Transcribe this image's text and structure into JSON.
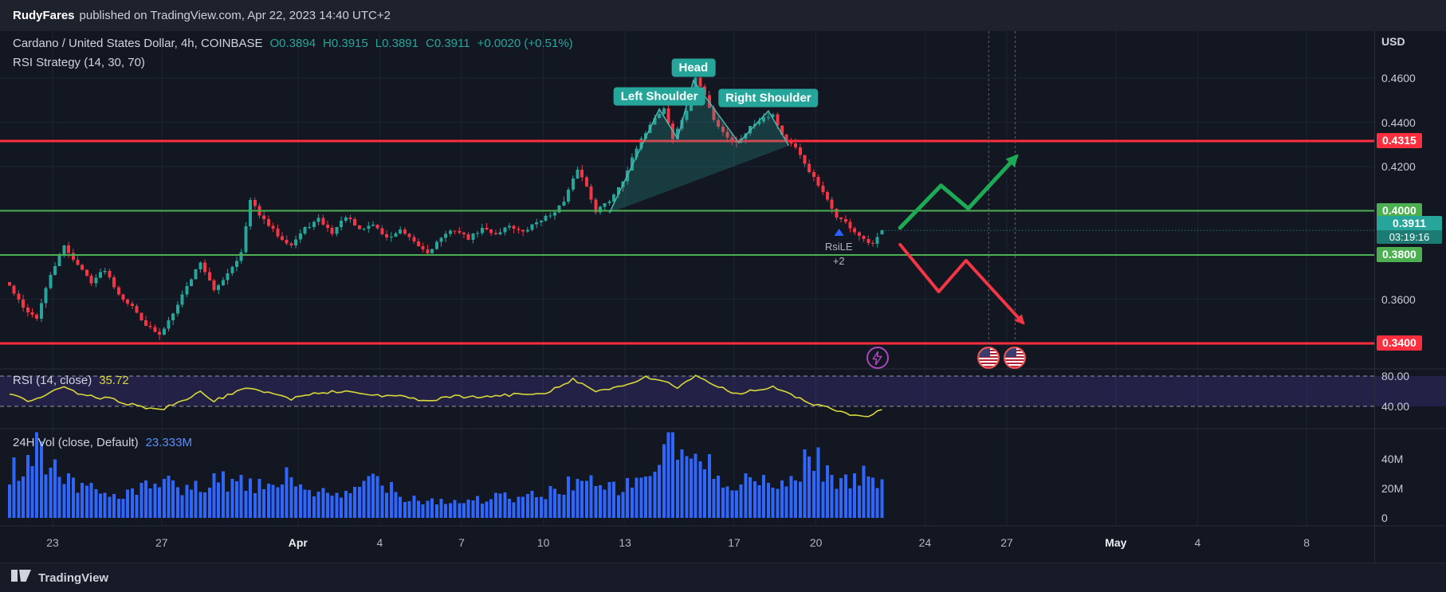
{
  "colors": {
    "up": "#26a69a",
    "down": "#f23645",
    "resistance_line": "#fd2e3d",
    "support_line": "#4caf50",
    "volume_bar": "#2e66fe",
    "rsi_line": "#d6d839",
    "rsi_band_fill": "rgba(126,87,255,0.16)",
    "pattern_fill": "rgba(38,166,154,0.25)",
    "pattern_stroke": "#4db6ac",
    "pattern_badge_bg": "#26a69a",
    "bull_arrow": "#1eaa55",
    "bear_arrow": "#f23645",
    "signal_arrow": "#2962ff",
    "last_badge_bg": "#26a69a",
    "grid": "#1c2334",
    "divider": "#2a2e39"
  },
  "attribution": {
    "author": "RudyFares",
    "rest": "published on TradingView.com, Apr 22, 2023 14:40 UTC+2"
  },
  "legend": {
    "symbol_title": "Cardano / United States Dollar, 4h, COINBASE",
    "open": "O0.3894",
    "high": "H0.3915",
    "low": "L0.3891",
    "close": "C0.3911",
    "change": "+0.0020 (+0.51%)",
    "strategy": "RSI Strategy (14, 30, 70)"
  },
  "rsi_pane": {
    "title": "RSI (14, close)",
    "value": "35.72",
    "axis": [
      {
        "text": "80.00",
        "v": 80
      },
      {
        "text": "40.00",
        "v": 40
      }
    ]
  },
  "volume_pane": {
    "title": "24H Vol (close, Default)",
    "value": "23.333M",
    "axis": [
      {
        "text": "40M",
        "v": 40
      },
      {
        "text": "20M",
        "v": 20
      },
      {
        "text": "0",
        "v": 0
      }
    ]
  },
  "price_axis": {
    "currency": "USD",
    "plain": [
      {
        "text": "0.4600",
        "price": 0.46
      },
      {
        "text": "0.4400",
        "price": 0.44
      },
      {
        "text": "0.4200",
        "price": 0.42
      },
      {
        "text": "0.3600",
        "price": 0.36
      }
    ],
    "levels": [
      {
        "text": "0.4315",
        "price": 0.4315,
        "type": "resistance"
      },
      {
        "text": "0.4000",
        "price": 0.4,
        "type": "support"
      },
      {
        "text": "0.3800",
        "price": 0.38,
        "type": "support"
      },
      {
        "text": "0.3400",
        "price": 0.34,
        "type": "resistance"
      }
    ],
    "last": {
      "text": "0.3911",
      "price": 0.3911,
      "countdown": "03:19:16"
    }
  },
  "time_axis": [
    {
      "label": "23",
      "day": 0,
      "major": false
    },
    {
      "label": "27",
      "day": 4,
      "major": false
    },
    {
      "label": "Apr",
      "day": 9,
      "major": true
    },
    {
      "label": "4",
      "day": 12,
      "major": false
    },
    {
      "label": "7",
      "day": 15,
      "major": false
    },
    {
      "label": "10",
      "day": 18,
      "major": false
    },
    {
      "label": "13",
      "day": 21,
      "major": false
    },
    {
      "label": "17",
      "day": 25,
      "major": false
    },
    {
      "label": "20",
      "day": 28,
      "major": false
    },
    {
      "label": "24",
      "day": 32,
      "major": false
    },
    {
      "label": "27",
      "day": 35,
      "major": false
    },
    {
      "label": "May",
      "day": 39,
      "major": true
    },
    {
      "label": "4",
      "day": 42,
      "major": false
    },
    {
      "label": "8",
      "day": 46,
      "major": false
    }
  ],
  "annotations": {
    "pattern_labels": {
      "left": "Left Shoulder",
      "head": "Head",
      "right": "Right Shoulder"
    },
    "signal": {
      "line1": "RsiLE",
      "line2": "+2"
    }
  },
  "footer": {
    "brand": "TradingView"
  },
  "chart_data": {
    "type": "candlestick",
    "symbol": "ADA/USD",
    "timeframe": "4h",
    "exchange": "COINBASE",
    "bars": 193,
    "visible_price_range": [
      0.3285,
      0.4813
    ],
    "levels": {
      "resistance": [
        0.4315,
        0.34
      ],
      "support": [
        0.4,
        0.38
      ]
    },
    "last_candle": {
      "o": 0.3894,
      "h": 0.3915,
      "l": 0.3891,
      "c": 0.3911
    },
    "extremes": {
      "swing_high": 0.4625,
      "swing_low": 0.3415
    },
    "rsi_band": [
      40,
      80
    ],
    "noise_seed": 42,
    "signal_bar": 182.5,
    "signal_price": 0.392,
    "strategy_event_bar": 191,
    "event_line_bars": [
      215.5,
      221.3
    ],
    "close_waypoints": [
      [
        0,
        0.366
      ],
      [
        3,
        0.356
      ],
      [
        6,
        0.3515
      ],
      [
        9,
        0.371
      ],
      [
        12,
        0.384
      ],
      [
        15,
        0.3755
      ],
      [
        18,
        0.368
      ],
      [
        21,
        0.3735
      ],
      [
        24,
        0.3625
      ],
      [
        27,
        0.3565
      ],
      [
        30,
        0.3485
      ],
      [
        33,
        0.3435
      ],
      [
        35,
        0.3505
      ],
      [
        38,
        0.362
      ],
      [
        42,
        0.377
      ],
      [
        45,
        0.3635
      ],
      [
        48,
        0.372
      ],
      [
        51,
        0.381
      ],
      [
        53,
        0.4045
      ],
      [
        56,
        0.3955
      ],
      [
        59,
        0.389
      ],
      [
        62,
        0.3845
      ],
      [
        65,
        0.392
      ],
      [
        68,
        0.396
      ],
      [
        71,
        0.39
      ],
      [
        74,
        0.3975
      ],
      [
        77,
        0.391
      ],
      [
        80,
        0.394
      ],
      [
        83,
        0.3875
      ],
      [
        86,
        0.391
      ],
      [
        89,
        0.3855
      ],
      [
        92,
        0.381
      ],
      [
        95,
        0.388
      ],
      [
        98,
        0.3915
      ],
      [
        101,
        0.3875
      ],
      [
        104,
        0.392
      ],
      [
        107,
        0.3895
      ],
      [
        110,
        0.3935
      ],
      [
        113,
        0.39
      ],
      [
        116,
        0.395
      ],
      [
        119,
        0.398
      ],
      [
        122,
        0.404
      ],
      [
        125,
        0.419
      ],
      [
        127,
        0.411
      ],
      [
        129,
        0.4
      ],
      [
        132,
        0.4045
      ],
      [
        135,
        0.414
      ],
      [
        138,
        0.428
      ],
      [
        141,
        0.4395
      ],
      [
        144,
        0.4465
      ],
      [
        146,
        0.4325
      ],
      [
        149,
        0.4455
      ],
      [
        151,
        0.4605
      ],
      [
        153,
        0.452
      ],
      [
        155,
        0.441
      ],
      [
        158,
        0.4335
      ],
      [
        160,
        0.4305
      ],
      [
        163,
        0.438
      ],
      [
        166,
        0.4425
      ],
      [
        168,
        0.4435
      ],
      [
        170,
        0.4345
      ],
      [
        173,
        0.428
      ],
      [
        176,
        0.418
      ],
      [
        179,
        0.408
      ],
      [
        182,
        0.3975
      ],
      [
        184,
        0.3945
      ],
      [
        186,
        0.3905
      ],
      [
        188,
        0.3865
      ],
      [
        190,
        0.3845
      ],
      [
        191,
        0.3875
      ],
      [
        192,
        0.3911
      ]
    ],
    "volume_waypoints_m": [
      [
        0,
        30
      ],
      [
        4,
        42
      ],
      [
        6,
        54
      ],
      [
        9,
        36
      ],
      [
        12,
        28
      ],
      [
        16,
        22
      ],
      [
        22,
        15
      ],
      [
        28,
        18
      ],
      [
        34,
        24
      ],
      [
        38,
        17
      ],
      [
        44,
        23
      ],
      [
        48,
        25
      ],
      [
        54,
        20
      ],
      [
        61,
        27
      ],
      [
        67,
        18
      ],
      [
        73,
        13
      ],
      [
        78,
        24
      ],
      [
        81,
        30
      ],
      [
        86,
        16
      ],
      [
        92,
        12
      ],
      [
        100,
        11
      ],
      [
        106,
        14
      ],
      [
        112,
        13
      ],
      [
        118,
        16
      ],
      [
        125,
        26
      ],
      [
        131,
        19
      ],
      [
        137,
        22
      ],
      [
        142,
        34
      ],
      [
        145,
        52
      ],
      [
        148,
        44
      ],
      [
        150,
        40
      ],
      [
        156,
        30
      ],
      [
        160,
        24
      ],
      [
        163,
        27
      ],
      [
        167,
        21
      ],
      [
        170,
        22
      ],
      [
        174,
        32
      ],
      [
        176,
        45
      ],
      [
        179,
        34
      ],
      [
        181,
        28
      ],
      [
        184,
        24
      ],
      [
        186,
        25
      ],
      [
        189,
        29
      ],
      [
        192,
        28
      ]
    ],
    "rsi_waypoints": [
      [
        0,
        58
      ],
      [
        5,
        46
      ],
      [
        9,
        60
      ],
      [
        12,
        64
      ],
      [
        16,
        55
      ],
      [
        22,
        50
      ],
      [
        27,
        42
      ],
      [
        33,
        35
      ],
      [
        38,
        48
      ],
      [
        42,
        58
      ],
      [
        45,
        48
      ],
      [
        53,
        65
      ],
      [
        59,
        55
      ],
      [
        62,
        50
      ],
      [
        68,
        58
      ],
      [
        74,
        60
      ],
      [
        80,
        55
      ],
      [
        86,
        53
      ],
      [
        92,
        47
      ],
      [
        98,
        53
      ],
      [
        104,
        52
      ],
      [
        110,
        55
      ],
      [
        118,
        58
      ],
      [
        124,
        76
      ],
      [
        129,
        60
      ],
      [
        135,
        66
      ],
      [
        140,
        78
      ],
      [
        144,
        74
      ],
      [
        147,
        65
      ],
      [
        151,
        79
      ],
      [
        155,
        68
      ],
      [
        160,
        57
      ],
      [
        164,
        62
      ],
      [
        168,
        65
      ],
      [
        172,
        55
      ],
      [
        176,
        45
      ],
      [
        180,
        38
      ],
      [
        183,
        33
      ],
      [
        186,
        27
      ],
      [
        189,
        26
      ],
      [
        192,
        35.72
      ]
    ],
    "head_shoulders_points": [
      [
        132,
        0.399
      ],
      [
        143,
        0.446
      ],
      [
        147,
        0.4326
      ],
      [
        150.5,
        0.4589
      ],
      [
        160.5,
        0.4308
      ],
      [
        167,
        0.4452
      ],
      [
        171.5,
        0.4294
      ]
    ],
    "projection_bull": [
      [
        196,
        0.3923
      ],
      [
        205,
        0.4114
      ],
      [
        211,
        0.401
      ],
      [
        221.5,
        0.4244
      ]
    ],
    "projection_bear": [
      [
        196,
        0.3847
      ],
      [
        204.5,
        0.3634
      ],
      [
        210.5,
        0.3775
      ],
      [
        223,
        0.3494
      ]
    ]
  }
}
